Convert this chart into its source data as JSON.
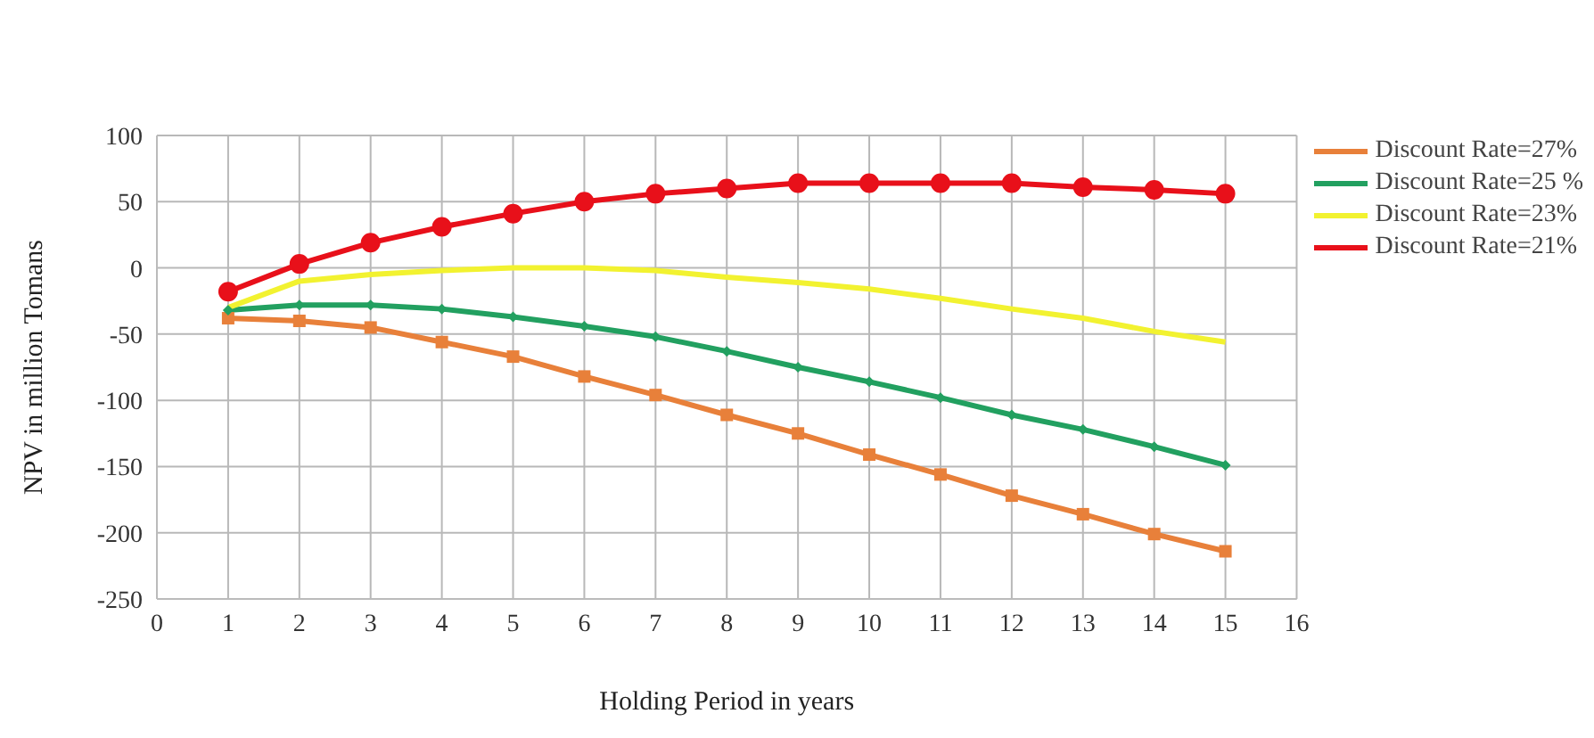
{
  "chart_data": {
    "type": "line",
    "xlabel": "Holding Period in years",
    "ylabel": "NPV in million Tomans",
    "x": [
      1,
      2,
      3,
      4,
      5,
      6,
      7,
      8,
      9,
      10,
      11,
      12,
      13,
      14,
      15
    ],
    "xlim": [
      0,
      16
    ],
    "xticks": [
      0,
      1,
      2,
      3,
      4,
      5,
      6,
      7,
      8,
      9,
      10,
      11,
      12,
      13,
      14,
      15,
      16
    ],
    "ylim": [
      -250,
      100
    ],
    "yticks": [
      -250,
      -200,
      -150,
      -100,
      -50,
      0,
      50,
      100
    ],
    "grid": true,
    "legend": "top right",
    "series": [
      {
        "name": "Discount Rate=27%",
        "color": "#e8803a",
        "marker": "square",
        "values": [
          -38,
          -40,
          -45,
          -56,
          -67,
          -82,
          -96,
          -111,
          -125,
          -141,
          -156,
          -172,
          -186,
          -201,
          -214
        ]
      },
      {
        "name": "Discount Rate=25 %",
        "color": "#22a060",
        "marker": "diamond",
        "values": [
          -32,
          -28,
          -28,
          -31,
          -37,
          -44,
          -52,
          -63,
          -75,
          -86,
          -98,
          -111,
          -122,
          -135,
          -149
        ]
      },
      {
        "name": "Discount Rate=23%",
        "color": "#f2f230",
        "marker": "none",
        "values": [
          -30,
          -10,
          -5,
          -2,
          0,
          0,
          -2,
          -7,
          -11,
          -16,
          -23,
          -31,
          -38,
          -48,
          -56
        ]
      },
      {
        "name": "Discount Rate=21%",
        "color": "#e8101a",
        "marker": "circle",
        "values": [
          -18,
          3,
          19,
          31,
          41,
          50,
          56,
          60,
          64,
          64,
          64,
          64,
          61,
          59,
          56
        ]
      }
    ]
  }
}
